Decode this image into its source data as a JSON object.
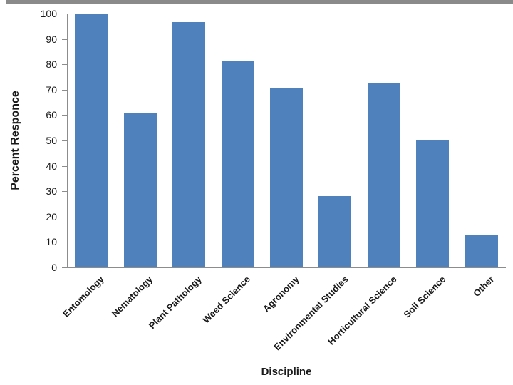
{
  "page": {
    "background": "#ffffff",
    "top_border_color": "#8a8a8a"
  },
  "chart_data": {
    "type": "bar",
    "title": "",
    "categories": [
      "Entomology",
      "Nematology",
      "Plant Pathology",
      "Weed Science",
      "Agronomy",
      "Environmental Studies",
      "Horticultural Science",
      "Soil Science",
      "Other"
    ],
    "values": [
      100,
      61,
      96.5,
      81.5,
      70.5,
      28,
      72.5,
      50,
      13
    ],
    "xlabel": "Discipline",
    "ylabel": "Percent Responce",
    "ylim": [
      0,
      100
    ],
    "yticks": [
      0,
      10,
      20,
      30,
      40,
      50,
      60,
      70,
      80,
      90,
      100
    ],
    "bar_color": "#4F81BD",
    "axis_color": "#8c8c8c",
    "tick_label_color": "#1a1a1a",
    "grid": false,
    "legend": false
  }
}
